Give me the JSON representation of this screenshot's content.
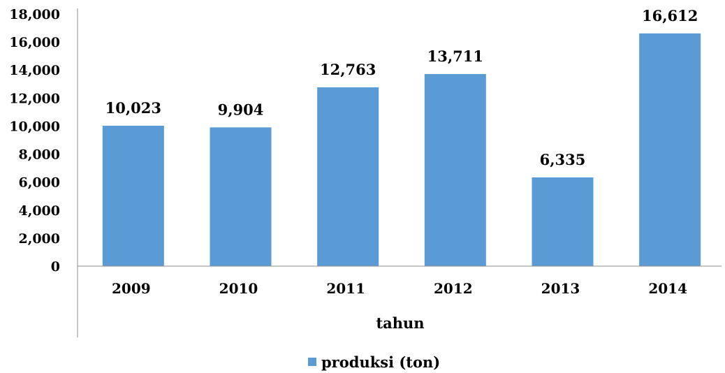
{
  "chart_data": {
    "type": "bar",
    "categories": [
      "2009",
      "2010",
      "2011",
      "2012",
      "2013",
      "2014"
    ],
    "series": [
      {
        "name": "produksi (ton)",
        "values": [
          10023,
          9904,
          12763,
          13711,
          6335,
          16612
        ],
        "value_labels": [
          "10,023",
          "9,904",
          "12,763",
          "13,711",
          "6,335",
          "16,612"
        ],
        "color": "#5B9BD5"
      }
    ],
    "yticks": [
      0,
      2000,
      4000,
      6000,
      8000,
      10000,
      12000,
      14000,
      16000,
      18000
    ],
    "ytick_labels": [
      "0",
      "2,000",
      "4,000",
      "6,000",
      "8,000",
      "10,000",
      "12,000",
      "14,000",
      "16,000",
      "18,000"
    ],
    "ylim": [
      0,
      18000
    ],
    "title": "",
    "xlabel": "tahun",
    "ylabel": "",
    "grid": false,
    "legend": "bottom"
  }
}
